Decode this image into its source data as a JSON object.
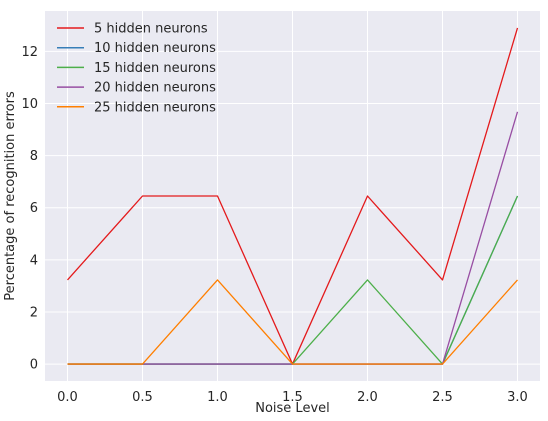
{
  "chart_data": {
    "type": "line",
    "title": "",
    "xlabel": "Noise Level",
    "ylabel": "Percentage of recognition errors",
    "x": [
      0.0,
      0.5,
      1.0,
      1.5,
      2.0,
      2.5,
      3.0
    ],
    "xlim": [
      -0.15,
      3.15
    ],
    "ylim": [
      -0.65,
      13.55
    ],
    "xticks": [
      0.0,
      0.5,
      1.0,
      1.5,
      2.0,
      2.5,
      3.0
    ],
    "xtick_labels": [
      "0.0",
      "0.5",
      "1.0",
      "1.5",
      "2.0",
      "2.5",
      "3.0"
    ],
    "yticks": [
      0,
      2,
      4,
      6,
      8,
      10,
      12
    ],
    "ytick_labels": [
      "0",
      "2",
      "4",
      "6",
      "8",
      "10",
      "12"
    ],
    "grid": true,
    "legend_position": "top-left",
    "background_color": "#eaeaf2",
    "grid_color": "#ffffff",
    "series": [
      {
        "name": "5 hidden neurons",
        "color": "#e41a1c",
        "values": [
          3.23,
          6.45,
          6.45,
          0,
          6.45,
          3.23,
          12.9
        ]
      },
      {
        "name": "10 hidden neurons",
        "color": "#377eb8",
        "values": [
          0,
          0,
          0,
          0,
          0,
          0,
          6.45
        ]
      },
      {
        "name": "15 hidden neurons",
        "color": "#4daf4a",
        "values": [
          0,
          0,
          0,
          0,
          3.23,
          0,
          6.45
        ]
      },
      {
        "name": "20 hidden neurons",
        "color": "#984ea3",
        "values": [
          0,
          0,
          0,
          0,
          0,
          0,
          9.68
        ]
      },
      {
        "name": "25 hidden neurons",
        "color": "#ff7f00",
        "values": [
          0,
          0,
          3.23,
          0,
          0,
          0,
          3.23
        ]
      }
    ]
  }
}
